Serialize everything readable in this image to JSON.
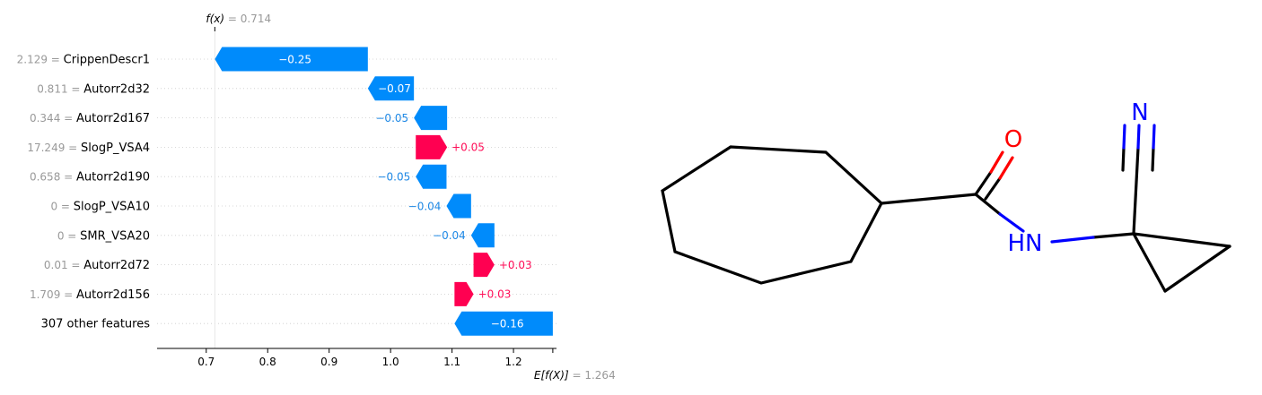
{
  "chart_data": {
    "type": "waterfall",
    "fx": {
      "label": "f(x)",
      "value": "0.714"
    },
    "efx": {
      "label": "E[f(X)]",
      "value": "1.264"
    },
    "base_value": 1.264,
    "output_value": 0.714,
    "xlim": [
      0.62,
      1.27
    ],
    "xticks": [
      0.7,
      0.8,
      0.9,
      1.0,
      1.1,
      1.2
    ],
    "xtick_labels": [
      "0.7",
      "0.8",
      "0.9",
      "1.0",
      "1.1",
      "1.2"
    ],
    "features": [
      {
        "value_text": "2.129",
        "name": "CrippenDescr1",
        "start": 0.963,
        "end": 0.714,
        "label": "−0.25"
      },
      {
        "value_text": "0.811",
        "name": "Autorr2d32",
        "start": 1.038,
        "end": 0.963,
        "label": "−0.07"
      },
      {
        "value_text": "0.344",
        "name": "Autorr2d167",
        "start": 1.092,
        "end": 1.038,
        "label": "−0.05"
      },
      {
        "value_text": "17.249",
        "name": "SlogP_VSA4",
        "start": 1.041,
        "end": 1.092,
        "label": "+0.05"
      },
      {
        "value_text": "0.658",
        "name": "Autorr2d190",
        "start": 1.091,
        "end": 1.041,
        "label": "−0.05"
      },
      {
        "value_text": "0",
        "name": "SlogP_VSA10",
        "start": 1.131,
        "end": 1.091,
        "label": "−0.04"
      },
      {
        "value_text": "0",
        "name": "SMR_VSA20",
        "start": 1.169,
        "end": 1.131,
        "label": "−0.04"
      },
      {
        "value_text": "0.01",
        "name": "Autorr2d72",
        "start": 1.135,
        "end": 1.169,
        "label": "+0.03"
      },
      {
        "value_text": "1.709",
        "name": "Autorr2d156",
        "start": 1.104,
        "end": 1.135,
        "label": "+0.03"
      },
      {
        "value_text": "",
        "name": "307 other features",
        "start": 1.264,
        "end": 1.104,
        "label": "−0.16"
      }
    ],
    "colors": {
      "negative": "#008bfb",
      "positive": "#ff0051",
      "negative_text": "#1E88E5",
      "positive_text": "#ff0d57"
    }
  },
  "molecule": {
    "atom_labels": {
      "oxygen": "O",
      "amide_nh": "HN",
      "nitrile_n": "N"
    },
    "colors": {
      "bond": "#000000",
      "oxygen": "#ff0000",
      "nitrogen": "#0000ff"
    }
  }
}
